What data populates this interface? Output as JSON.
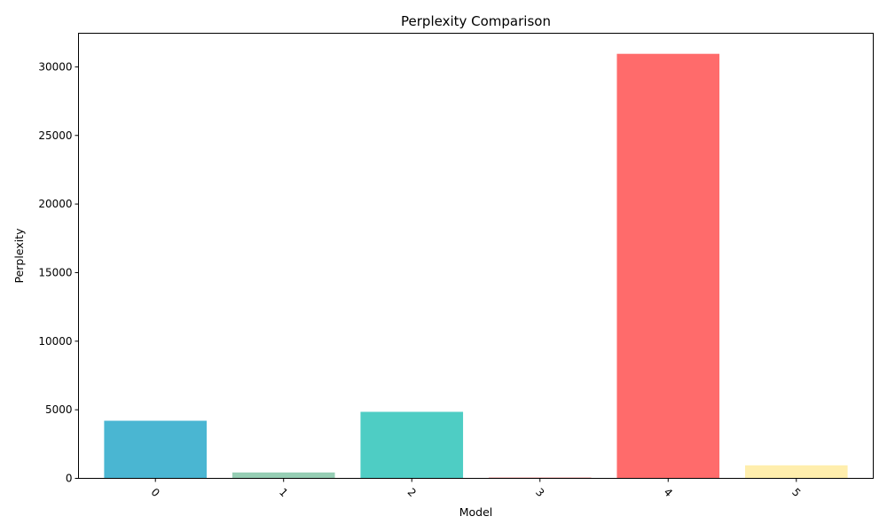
{
  "chart_data": {
    "type": "bar",
    "title": "Perplexity Comparison",
    "xlabel": "Model",
    "ylabel": "Perplexity",
    "categories": [
      "0",
      "1",
      "2",
      "3",
      "4",
      "5"
    ],
    "values": [
      4200,
      430,
      4850,
      60,
      30950,
      950
    ],
    "colors": [
      "#4AB6D2",
      "#96CEB4",
      "#4ECDC4",
      "#F08080",
      "#FF6B6B",
      "#FFEEAD"
    ],
    "yticks": [
      "0",
      "5000",
      "10000",
      "15000",
      "20000",
      "25000",
      "30000"
    ],
    "ylim": [
      0,
      32450
    ],
    "grid": false,
    "legend": "none",
    "xtick_rotation": 45
  }
}
